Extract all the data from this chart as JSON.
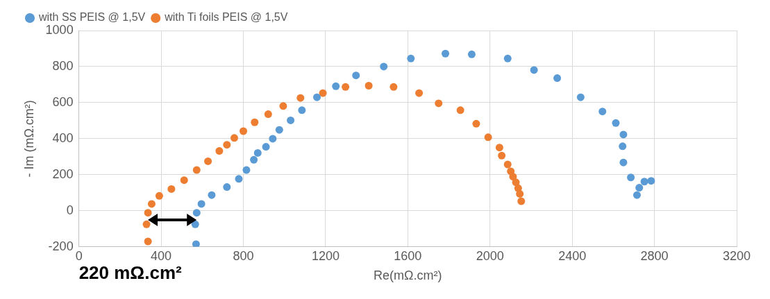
{
  "chart_data": {
    "type": "scatter",
    "xlabel": "Re(mΩ.cm²)",
    "ylabel": "- Im (mΩ.cm²)",
    "xlim": [
      0,
      3200
    ],
    "ylim": [
      -200,
      1000
    ],
    "xticks": [
      0,
      400,
      800,
      1200,
      1600,
      2000,
      2400,
      2800,
      3200
    ],
    "yticks": [
      -200,
      0,
      200,
      400,
      600,
      800,
      1000
    ],
    "grid": true,
    "legend": "top left",
    "marker": "circle",
    "annotations": [
      "220 mΩ.cm²"
    ],
    "series": [
      {
        "name": "with SS PEIS @ 1,5V",
        "color": "#5b9bd5",
        "x": [
          570,
          566,
          573,
          596,
          646,
          720,
          778,
          815,
          851,
          870,
          910,
          943,
          975,
          1030,
          1085,
          1158,
          1250,
          1348,
          1483,
          1615,
          1783,
          1911,
          2086,
          2214,
          2327,
          2441,
          2547,
          2612,
          2649,
          2645,
          2649,
          2685,
          2715,
          2726,
          2751,
          2784
        ],
        "values": [
          -185,
          -75,
          -11,
          38,
          87,
          132,
          177,
          226,
          283,
          321,
          355,
          400,
          449,
          502,
          558,
          630,
          691,
          751,
          800,
          845,
          872,
          868,
          845,
          781,
          736,
          630,
          551,
          487,
          423,
          358,
          268,
          185,
          87,
          128,
          162,
          166
        ]
      },
      {
        "name": "with Ti foils PEIS @ 1,5V",
        "color": "#ed7d31",
        "x": [
          336,
          329,
          336,
          354,
          391,
          450,
          512,
          573,
          628,
          683,
          720,
          756,
          800,
          855,
          921,
          994,
          1078,
          1187,
          1297,
          1410,
          1531,
          1655,
          1750,
          1856,
          1933,
          1991,
          2046,
          2057,
          2086,
          2101,
          2112,
          2126,
          2137,
          2145,
          2152
        ],
        "values": [
          -170,
          -75,
          -11,
          38,
          83,
          121,
          170,
          226,
          275,
          332,
          366,
          404,
          442,
          491,
          536,
          581,
          626,
          653,
          687,
          694,
          687,
          653,
          596,
          558,
          483,
          408,
          351,
          306,
          257,
          219,
          189,
          158,
          125,
          94,
          53
        ]
      }
    ]
  }
}
